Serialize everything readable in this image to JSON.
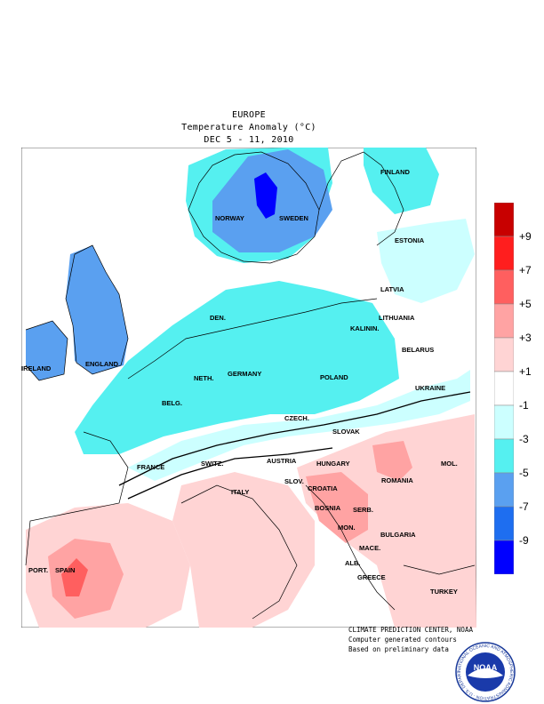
{
  "header": {
    "line1": "EUROPE",
    "line2": "Temperature Anomaly (°C)",
    "line3": "DEC 5 - 11, 2010"
  },
  "map": {
    "countries": {
      "finland": "FINLAND",
      "norway": "NORWAY",
      "sweden": "SWEDEN",
      "estonia": "ESTONIA",
      "latvia": "LATVIA",
      "lithuania": "LITHUANIA",
      "kalinin": "KALININ.",
      "belarus": "BELARUS",
      "den": "DEN.",
      "ireland": "IRELAND",
      "england": "ENGLAND",
      "neth": "NETH.",
      "germany": "GERMANY",
      "poland": "POLAND",
      "belg": "BELG.",
      "ukraine": "UKRAINE",
      "czech": "CZECH.",
      "slovak": "SLOVAK",
      "france": "FRANCE",
      "switz": "SWITZ.",
      "austria": "AUSTRIA",
      "hungary": "HUNGARY",
      "mol": "MOL.",
      "romania": "ROMANIA",
      "slov": "SLOV.",
      "croatia": "CROATIA",
      "italy": "ITALY",
      "bosnia": "BOSNIA",
      "serb": "SERB.",
      "mon": "MON.",
      "bulgaria": "BULGARIA",
      "mace": "MACE.",
      "port": "PORT.",
      "spain": "SPAIN",
      "alb": "ALB.",
      "greece": "GREECE",
      "turkey": "TURKEY"
    }
  },
  "legend": {
    "colors": [
      "#c80000",
      "#ff1e1e",
      "#ff5f5f",
      "#ffa3a3",
      "#ffd4d4",
      "#ffffff",
      "#ccffff",
      "#55f0f0",
      "#5aa0f0",
      "#1e6ef0",
      "#0000ff"
    ],
    "labels": [
      "+9",
      "+7",
      "+5",
      "+3",
      "+1",
      "-1",
      "-3",
      "-5",
      "-7",
      "-9"
    ]
  },
  "credits": {
    "line1": "CLIMATE PREDICTION CENTER, NOAA",
    "line2": "Computer generated contours",
    "line3": "Based on preliminary data"
  },
  "logo": {
    "text": "NOAA",
    "ring_text": "NATIONAL OCEANIC AND ATMOSPHERIC ADMINISTRATION · U.S. DEPARTMENT OF COMMERCE"
  }
}
